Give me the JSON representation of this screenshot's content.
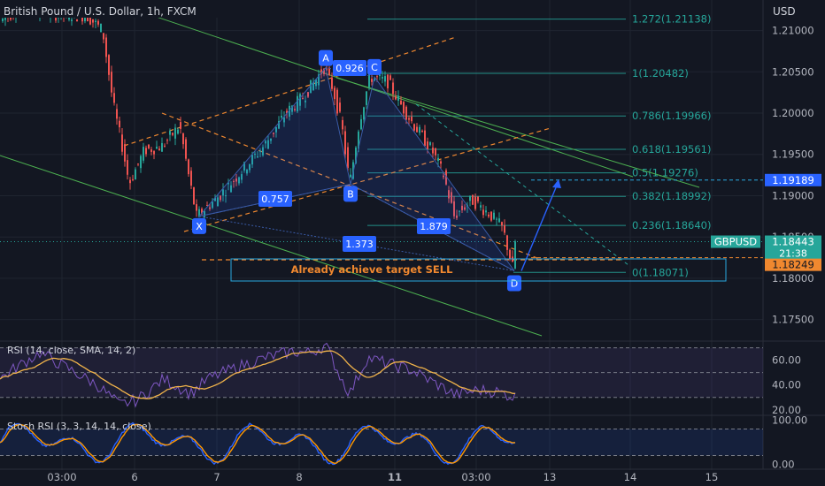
{
  "header": {
    "title": "British Pound / U.S. Dollar, 1h, FXCM",
    "currency": "USD"
  },
  "colors": {
    "background": "#131722",
    "grid": "#1f2430",
    "up_candle": "#26a69a",
    "down_candle": "#ef5350",
    "fib_line": "#26a69a",
    "fib_text": "#26a69a",
    "pattern_label": "#2962ff",
    "channel_orange": "#f0882f",
    "channel_green": "#4caf50",
    "target_text": "#f0882f",
    "rsi_line": "#7e57c2",
    "rsi_ma": "#f0b34a",
    "stoch_k": "#2962ff",
    "stoch_d": "#ff9800"
  },
  "chart_data": [
    {
      "type": "candlestick",
      "symbol": "GBPUSD",
      "ylim": [
        1.1725,
        1.2137
      ],
      "y_ticks": [
        "1.21000",
        "1.20500",
        "1.20000",
        "1.19500",
        "1.19000",
        "1.18500",
        "1.18000",
        "1.17500"
      ],
      "x_ticks": [
        "03:00",
        "6",
        "7",
        "8",
        "11",
        "03:00",
        "13",
        "14",
        "15"
      ],
      "fib_levels": [
        {
          "label": "1.272(1.21138)",
          "value": 1.21138
        },
        {
          "label": "1(1.20482)",
          "value": 1.20482
        },
        {
          "label": "0.786(1.19966)",
          "value": 1.19966
        },
        {
          "label": "0.618(1.19561)",
          "value": 1.19561
        },
        {
          "label": "0.5(1.19276)",
          "value": 1.19276
        },
        {
          "label": "0.382(1.18992)",
          "value": 1.18992
        },
        {
          "label": "0.236(1.18640)",
          "value": 1.1864
        },
        {
          "label": "0(1.18071)",
          "value": 1.18071
        }
      ],
      "pattern_points": [
        {
          "label": "X",
          "price": 1.1875
        },
        {
          "label": "A",
          "price": 1.2055
        },
        {
          "label": "B",
          "price": 1.1914
        },
        {
          "label": "C",
          "price": 1.2044
        },
        {
          "label": "D",
          "price": 1.1809
        }
      ],
      "pattern_ratios": [
        "0.926",
        "0.757",
        "1.879",
        "1.373"
      ],
      "annotation": "Already achieve target SELL",
      "price_labels": [
        {
          "text": "1.19189",
          "value": 1.19189
        },
        {
          "text": "GBPUSD",
          "value": 1.18443
        },
        {
          "text": "1.18443",
          "value": 1.18443
        },
        {
          "text": "21:38",
          "value": 1.18443
        },
        {
          "text": "1.18249",
          "value": 1.18249
        }
      ]
    },
    {
      "type": "line",
      "title": "RSI (14, close, SMA, 14, 2)",
      "ylim": [
        17,
        74
      ],
      "y_ticks": [
        "60.00",
        "40.00",
        "20.00"
      ],
      "band": [
        30,
        70
      ]
    },
    {
      "type": "line",
      "title": "Stoch RSI (3, 3, 14, 14, close)",
      "ylim": [
        -5,
        107
      ],
      "y_ticks": [
        "100.00",
        "0.00"
      ],
      "band": [
        20,
        80
      ]
    }
  ]
}
